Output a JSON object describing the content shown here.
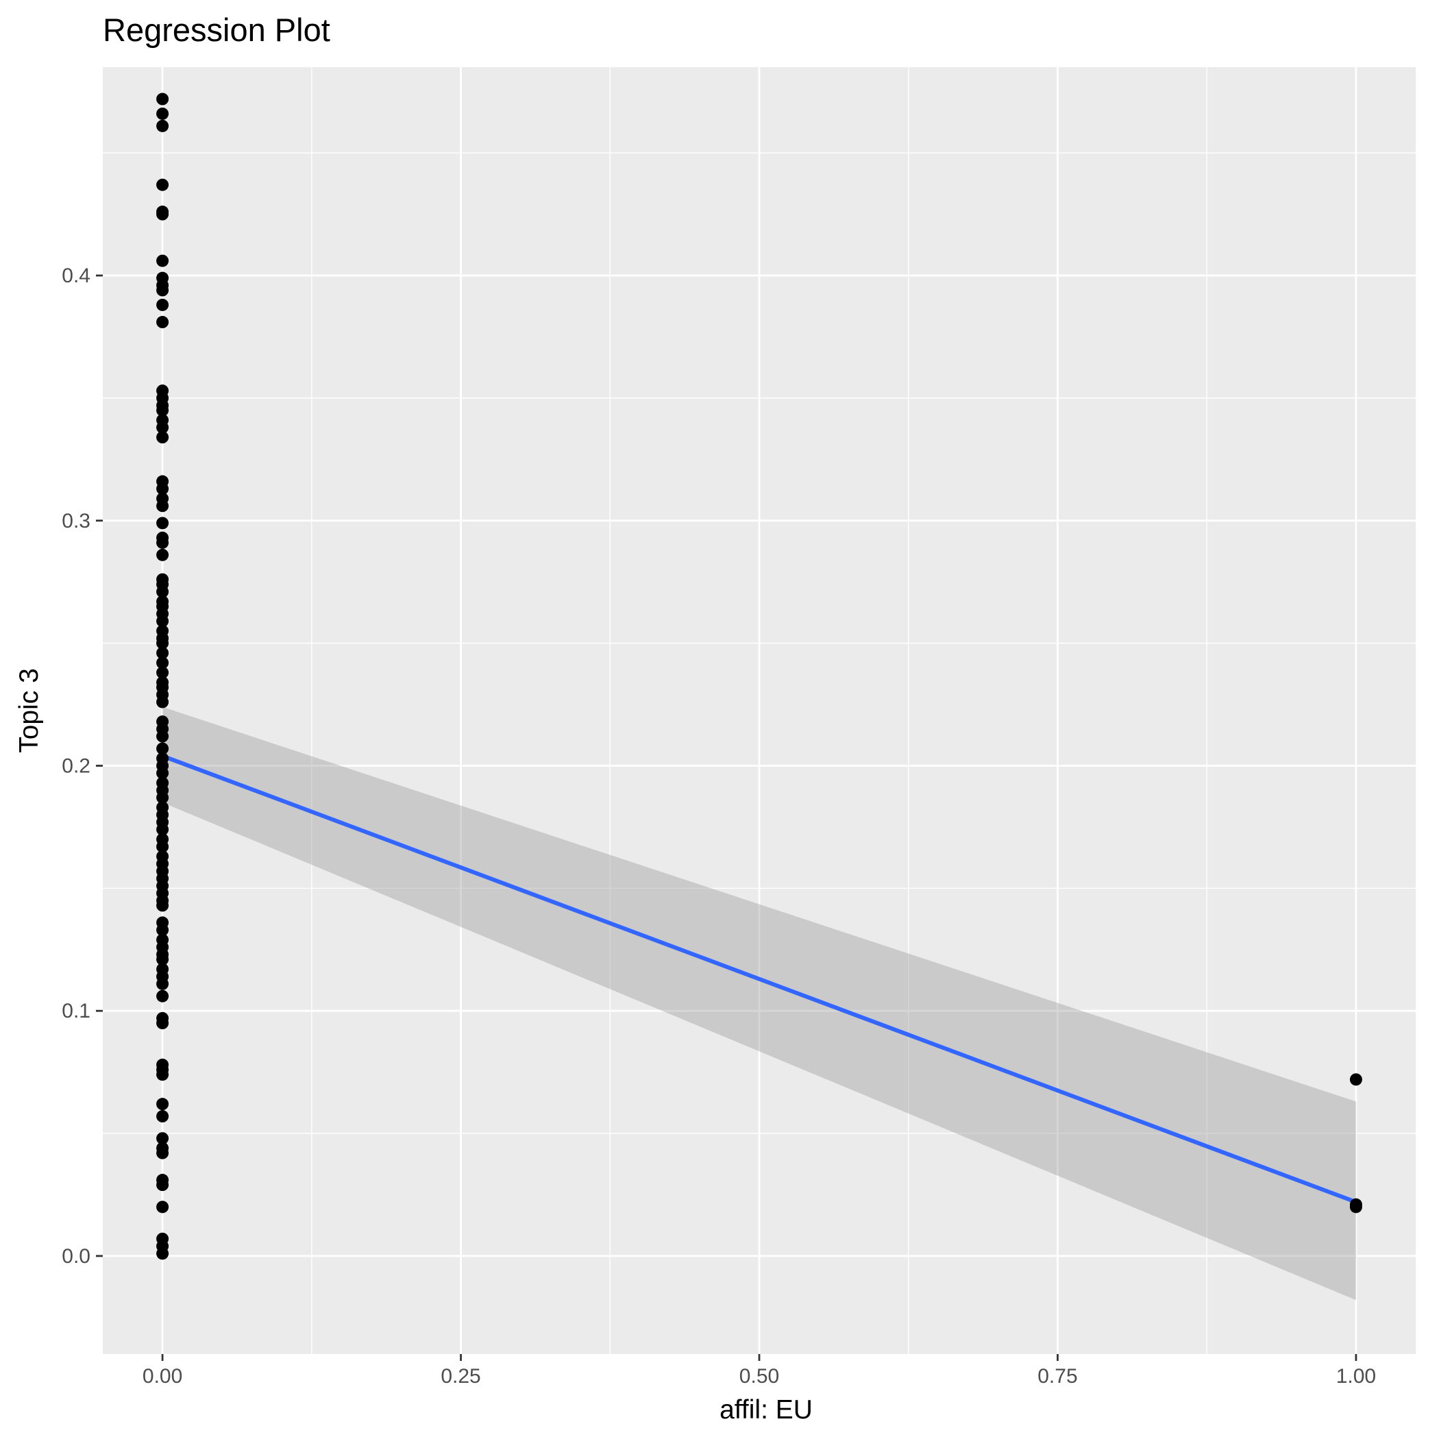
{
  "chart_data": {
    "type": "scatter",
    "title": "Regression Plot",
    "xlabel": "affil: EU",
    "ylabel": "Topic 3",
    "xlim": [
      -0.05,
      1.05
    ],
    "ylim": [
      -0.04,
      0.485
    ],
    "x_ticks": [
      "0.00",
      "0.25",
      "0.50",
      "0.75",
      "1.00"
    ],
    "y_ticks": [
      "0.0",
      "0.1",
      "0.2",
      "0.3",
      "0.4"
    ],
    "grid": true,
    "points": {
      "x0": [
        0.472,
        0.466,
        0.461,
        0.437,
        0.426,
        0.425,
        0.406,
        0.399,
        0.396,
        0.394,
        0.388,
        0.381,
        0.353,
        0.35,
        0.347,
        0.345,
        0.341,
        0.338,
        0.334,
        0.316,
        0.313,
        0.309,
        0.306,
        0.299,
        0.293,
        0.291,
        0.286,
        0.276,
        0.274,
        0.271,
        0.267,
        0.265,
        0.262,
        0.259,
        0.255,
        0.252,
        0.25,
        0.246,
        0.242,
        0.238,
        0.234,
        0.232,
        0.229,
        0.226,
        0.218,
        0.215,
        0.212,
        0.207,
        0.203,
        0.2,
        0.197,
        0.193,
        0.19,
        0.187,
        0.183,
        0.18,
        0.177,
        0.174,
        0.17,
        0.167,
        0.163,
        0.16,
        0.157,
        0.154,
        0.151,
        0.148,
        0.145,
        0.143,
        0.136,
        0.133,
        0.129,
        0.126,
        0.123,
        0.121,
        0.117,
        0.114,
        0.111,
        0.106,
        0.097,
        0.095,
        0.078,
        0.076,
        0.074,
        0.062,
        0.057,
        0.048,
        0.044,
        0.042,
        0.031,
        0.029,
        0.02,
        0.007,
        0.004,
        0.001
      ],
      "x1": [
        0.072,
        0.021,
        0.02
      ]
    },
    "fit": {
      "x": [
        0,
        1
      ],
      "y": [
        0.204,
        0.022
      ],
      "ci_lower": [
        0.185,
        -0.018
      ],
      "ci_upper": [
        0.224,
        0.063
      ]
    },
    "colors": {
      "panel": "#EBEBEB",
      "line": "#3366FF",
      "band": "#999999",
      "points": "#000000"
    }
  }
}
